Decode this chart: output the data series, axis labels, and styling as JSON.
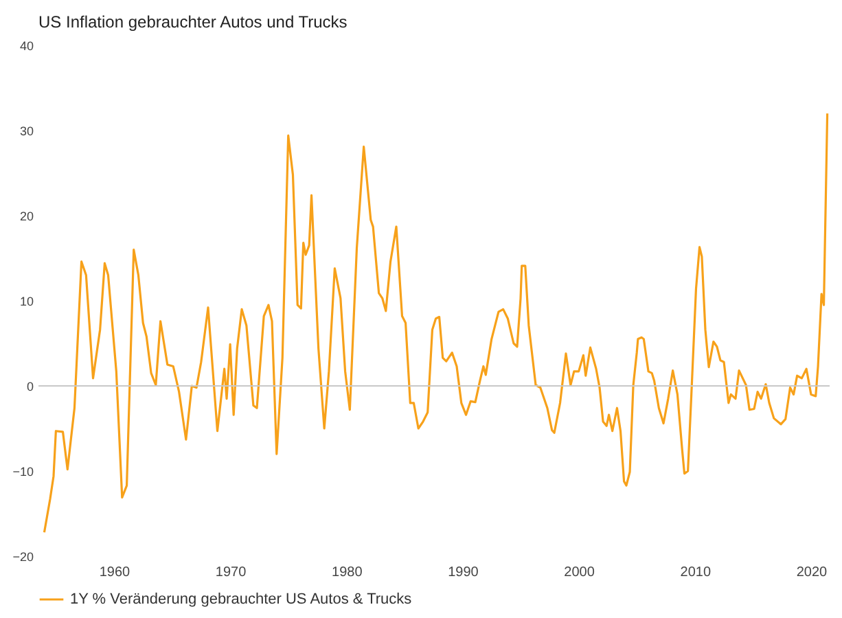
{
  "chart_data": {
    "type": "line",
    "title": "US Inflation gebrauchter Autos und Trucks",
    "x": [
      1954.0,
      1954.5,
      1954.8,
      1955.0,
      1955.6,
      1956.0,
      1956.6,
      1957.2,
      1957.6,
      1958.2,
      1958.8,
      1959.2,
      1959.5,
      1960.2,
      1960.7,
      1961.1,
      1961.7,
      1962.1,
      1962.5,
      1962.8,
      1963.2,
      1963.6,
      1964.0,
      1964.6,
      1965.1,
      1965.6,
      1966.2,
      1966.7,
      1967.1,
      1967.5,
      1968.1,
      1968.9,
      1969.5,
      1969.7,
      1970.0,
      1970.3,
      1970.6,
      1971.0,
      1971.4,
      1972.0,
      1972.3,
      1972.9,
      1973.3,
      1973.6,
      1974.0,
      1974.5,
      1975.0,
      1975.4,
      1975.8,
      1976.1,
      1976.3,
      1976.5,
      1976.8,
      1977.0,
      1977.6,
      1978.1,
      1978.5,
      1979.0,
      1979.5,
      1979.9,
      1980.3,
      1980.9,
      1981.5,
      1982.1,
      1982.3,
      1982.8,
      1983.1,
      1983.4,
      1983.8,
      1984.3,
      1984.8,
      1985.1,
      1985.5,
      1985.8,
      1986.2,
      1986.6,
      1987.0,
      1987.4,
      1987.7,
      1988.0,
      1988.3,
      1988.6,
      1989.1,
      1989.5,
      1989.9,
      1990.3,
      1990.7,
      1991.1,
      1991.5,
      1991.8,
      1992.0,
      1992.5,
      1993.1,
      1993.5,
      1993.9,
      1994.4,
      1994.7,
      1995.0,
      1995.1,
      1995.4,
      1995.7,
      1996.3,
      1996.7,
      1997.3,
      1997.7,
      1997.9,
      1998.4,
      1998.9,
      1999.3,
      1999.6,
      2000.0,
      2000.4,
      2000.6,
      2001.0,
      2001.5,
      2001.8,
      2002.1,
      2002.4,
      2002.6,
      2002.9,
      2003.3,
      2003.6,
      2003.9,
      2004.1,
      2004.4,
      2004.7,
      2005.0,
      2005.1,
      2005.4,
      2005.6,
      2006.0,
      2006.3,
      2006.5,
      2006.9,
      2007.3,
      2007.7,
      2008.1,
      2008.5,
      2008.9,
      2009.1,
      2009.4,
      2009.7,
      2010.1,
      2010.4,
      2010.6,
      2010.9,
      2011.2,
      2011.6,
      2011.9,
      2012.2,
      2012.5,
      2012.9,
      2013.1,
      2013.5,
      2013.8,
      2014.4,
      2014.7,
      2015.1,
      2015.4,
      2015.7,
      2016.1,
      2016.4,
      2016.8,
      2017.4,
      2017.8,
      2018.2,
      2018.5,
      2018.8,
      2019.2,
      2019.6,
      2020.0,
      2020.4,
      2020.6,
      2020.9,
      2021.1,
      2021.4
    ],
    "series": [
      {
        "name": "1Y % Veränderung gebrauchter US Autos & Trucks",
        "color": "#f7a11a",
        "values": [
          -17.2,
          -13.3,
          -10.6,
          -5.3,
          -5.4,
          -9.8,
          -2.6,
          14.6,
          13.0,
          0.9,
          6.6,
          14.4,
          13.0,
          1.7,
          -13.1,
          -11.7,
          16.0,
          13.0,
          7.4,
          5.8,
          1.5,
          0.1,
          7.6,
          2.5,
          2.3,
          -0.7,
          -6.3,
          0,
          -0.2,
          2.8,
          9.2,
          -5.3,
          2.0,
          -1.5,
          4.9,
          -3.4,
          4.4,
          9.0,
          7.1,
          -2.3,
          -2.6,
          8.2,
          9.5,
          7.6,
          -8.0,
          3.3,
          29.4,
          24.8,
          9.5,
          9.1,
          16.8,
          15.4,
          16.5,
          22.4,
          4.4,
          -5.0,
          1.7,
          13.8,
          10.3,
          1.7,
          -2.8,
          16.2,
          28.1,
          19.5,
          18.7,
          10.9,
          10.3,
          8.8,
          14.6,
          18.7,
          8.2,
          7.4,
          -2.0,
          -2.0,
          -5.0,
          -4.2,
          -3.1,
          6.6,
          7.9,
          8.1,
          3.3,
          2.9,
          3.9,
          2.3,
          -2.0,
          -3.4,
          -1.8,
          -1.9,
          0.6,
          2.3,
          1.3,
          5.5,
          8.7,
          9.0,
          7.9,
          5.0,
          4.6,
          10.3,
          14.1,
          14.1,
          7.1,
          0.1,
          -0.2,
          -2.6,
          -5.2,
          -5.5,
          -2.0,
          3.8,
          0.1,
          1.7,
          1.7,
          3.6,
          1.2,
          4.5,
          2.0,
          -0.2,
          -4.2,
          -4.7,
          -3.4,
          -5.3,
          -2.6,
          -5.3,
          -11.2,
          -11.7,
          -10.1,
          0.1,
          3.9,
          5.5,
          5.7,
          5.5,
          1.7,
          1.5,
          0.6,
          -2.6,
          -4.4,
          -1.5,
          1.8,
          -1.0,
          -7.4,
          -10.3,
          -10.0,
          -1.0,
          11.4,
          16.3,
          15.2,
          6.6,
          2.2,
          5.2,
          4.6,
          3.0,
          2.8,
          -2.0,
          -1.0,
          -1.5,
          1.8,
          0.1,
          -2.8,
          -2.7,
          -0.7,
          -1.5,
          0.2,
          -2.0,
          -3.8,
          -4.5,
          -3.9,
          -0.2,
          -1.0,
          1.2,
          0.9,
          2.0,
          -1.0,
          -1.2,
          2.3,
          10.8,
          9.5,
          32.0
        ]
      }
    ],
    "xlim": [
      1953.5,
      2021.6
    ],
    "xticks": [
      1960,
      1970,
      1980,
      1990,
      2000,
      2010,
      2020
    ],
    "ylim": [
      -20,
      40
    ],
    "yticks": [
      -20,
      -10,
      0,
      10,
      20,
      30,
      40
    ],
    "ref_lines": [
      {
        "axis": "y",
        "value": 0,
        "color": "#c8c8c8"
      }
    ],
    "legend": "bottom left"
  }
}
